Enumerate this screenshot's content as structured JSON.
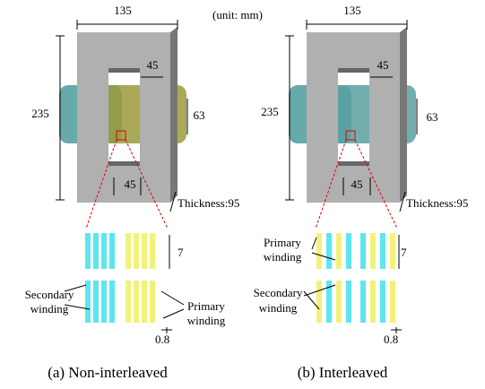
{
  "unit": "(unit: mm)",
  "panels": [
    {
      "dims": {
        "width": "135",
        "window": "45",
        "height": "235",
        "coil": "63",
        "yoke": "45",
        "thickness": "Thickness:95"
      },
      "detail": {
        "spacing": "7",
        "bar_width": "0.8",
        "primary": [
          "Primary",
          "winding"
        ],
        "secondary": [
          "Secondary",
          "winding"
        ]
      },
      "caption": "(a) Non-interleaved"
    },
    {
      "dims": {
        "width": "135",
        "window": "45",
        "height": "235",
        "coil": "63",
        "yoke": "45",
        "thickness": "Thickness:95"
      },
      "detail": {
        "spacing": "7",
        "bar_width": "0.8",
        "primary": [
          "Primary",
          "winding"
        ],
        "secondary": [
          "Secondary",
          "winding"
        ]
      },
      "caption": "(b) Interleaved"
    }
  ]
}
